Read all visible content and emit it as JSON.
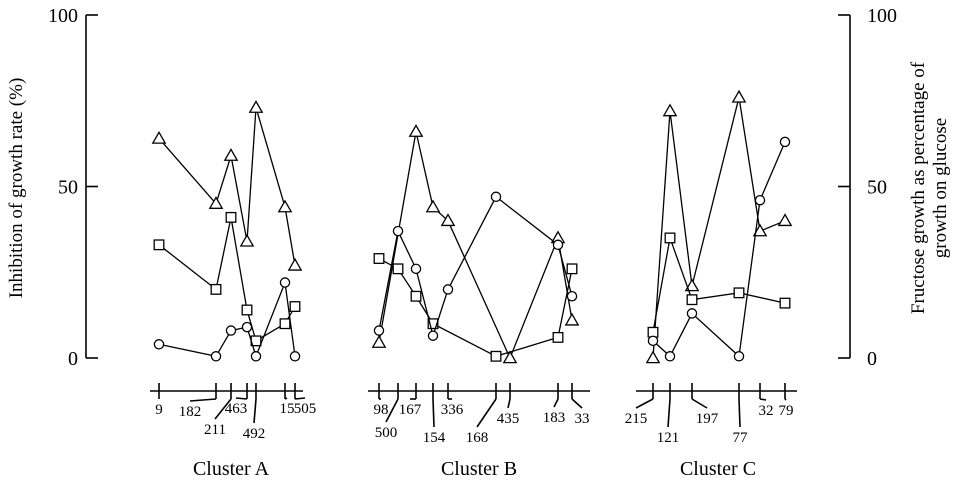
{
  "chart_data": {
    "type": "line",
    "ylabel_left": "Inhibition of growth rate (%)",
    "ylabel_right_line1": "Fructose growth as percentage of",
    "ylabel_right_line2": "growth on glucose",
    "left_axis": {
      "ylim": [
        0,
        100
      ],
      "ticks": [
        "0",
        "50",
        "100"
      ]
    },
    "right_axis": {
      "ylim": [
        0,
        100
      ],
      "ticks": [
        "0",
        "50",
        "100"
      ]
    },
    "series_markers": [
      "triangle",
      "square",
      "circle"
    ],
    "clusters": [
      {
        "name": "Cluster A",
        "strains": [
          "9",
          "182",
          "211",
          "463",
          "492",
          "15",
          "505"
        ],
        "triangle": [
          64,
          45,
          59,
          34,
          73,
          44,
          27
        ],
        "square": [
          33,
          20,
          41,
          14,
          5,
          10,
          15
        ],
        "circle": [
          4,
          0.5,
          8,
          9,
          0.5,
          22,
          0.5
        ]
      },
      {
        "name": "Cluster B",
        "strains": [
          "98",
          "500",
          "167",
          "154",
          "336",
          "168",
          "435",
          "183",
          "33"
        ],
        "triangle": [
          4.5,
          null,
          66,
          44,
          40,
          null,
          0,
          35,
          11
        ],
        "square": [
          29,
          26,
          18,
          10,
          null,
          0.5,
          null,
          6,
          26
        ],
        "circle": [
          8,
          37,
          26,
          6.5,
          20,
          47,
          null,
          33,
          18
        ]
      },
      {
        "name": "Cluster C",
        "strains": [
          "215",
          "121",
          "197",
          "77",
          "32",
          "79"
        ],
        "triangle": [
          0,
          72,
          21,
          76,
          37,
          40
        ],
        "square": [
          7.5,
          35,
          17,
          19,
          null,
          16
        ],
        "circle": [
          5,
          0.5,
          13,
          0.5,
          46,
          63
        ]
      }
    ]
  }
}
